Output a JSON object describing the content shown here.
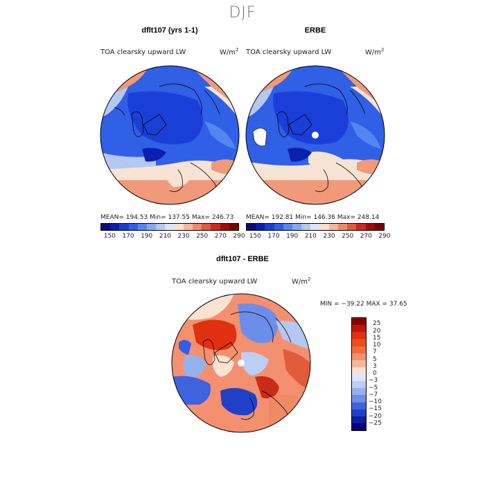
{
  "figure": {
    "title": "DJF"
  },
  "panels": [
    {
      "id": "model",
      "title": "dflt107 (yrs 1-1)",
      "variable": "TOA clearsky upward LW",
      "units": "W/m",
      "units_sup": "2",
      "stats_text": "MEAN= 194.53   Min= 137.55   Max= 246.73",
      "mean": 194.53,
      "min": 137.55,
      "max": 246.73
    },
    {
      "id": "obs",
      "title": "ERBE",
      "variable": "TOA clearsky upward LW",
      "units": "W/m",
      "units_sup": "2",
      "stats_text": "MEAN= 192.81   Min= 146.36   Max= 248.14",
      "mean": 192.81,
      "min": 146.36,
      "max": 248.14
    },
    {
      "id": "diff",
      "title": "dflt107 - ERBE",
      "variable": "TOA clearsky upward LW",
      "units": "W/m",
      "units_sup": "2",
      "stats_text": "MIN = −39.22  MAX =  37.65",
      "min": -39.22,
      "max": 37.65
    }
  ],
  "colorbar_abs": {
    "tick_labels": [
      "150",
      "170",
      "190",
      "210",
      "230",
      "250",
      "270",
      "290"
    ],
    "colors": [
      "#0a0a80",
      "#0b1fb0",
      "#1a3fd8",
      "#2f5fe8",
      "#5585f0",
      "#86a8f0",
      "#b4c8f2",
      "#dde6f8",
      "#fbe0cc",
      "#f5b89a",
      "#ef8a66",
      "#e35a3c",
      "#cc2a18",
      "#a30a0a",
      "#7a0000"
    ]
  },
  "colorbar_diff": {
    "tick_labels": [
      "25",
      "20",
      "15",
      "10",
      "7",
      "5",
      "3",
      "0",
      "−3",
      "−5",
      "−7",
      "−10",
      "−15",
      "−20",
      "−25"
    ],
    "colors": [
      "#8a0000",
      "#c0150a",
      "#e0300f",
      "#f04a1c",
      "#f36a3a",
      "#f39070",
      "#f6b89c",
      "#fbe2d0",
      "#dce6f8",
      "#bccef4",
      "#96b2ee",
      "#6d8ee8",
      "#3f62de",
      "#2040c8",
      "#0a20a0",
      "#000080"
    ]
  },
  "map": {
    "colors": {
      "background_blue": "#2f60e6",
      "deep_blue": "#1a3fd8",
      "mid_blue": "#5585f0",
      "light_blue": "#b4c8f2",
      "pale": "#f7e3d4",
      "salmon": "#f09a7a",
      "orange": "#ea6a45",
      "red": "#d2361e",
      "coast": "#000000"
    }
  }
}
